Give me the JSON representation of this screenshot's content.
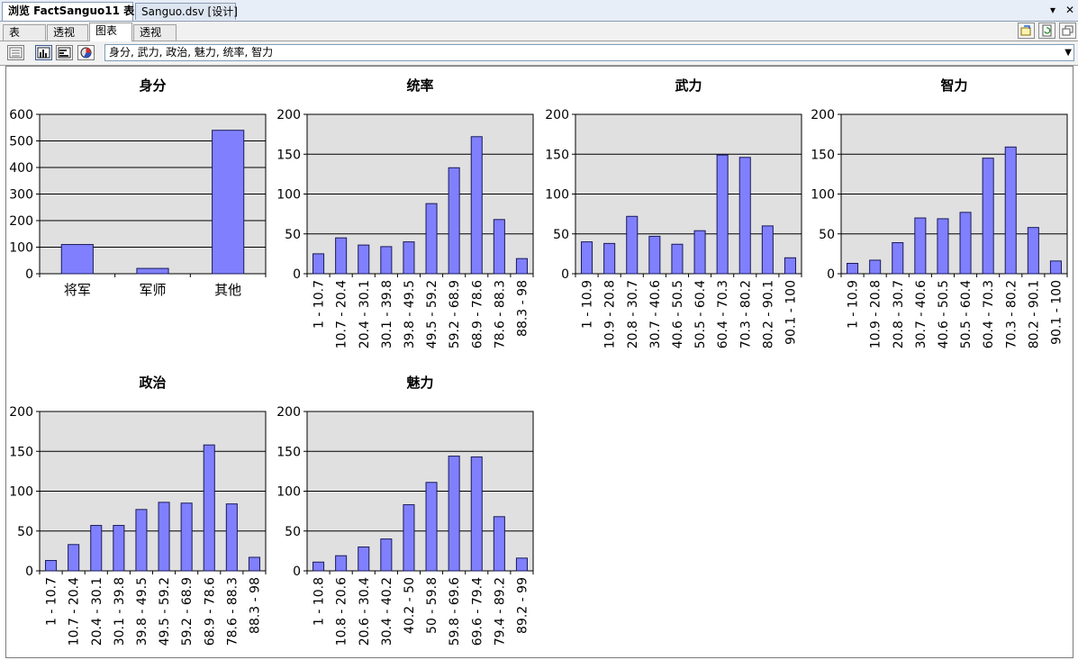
{
  "document_tabs": [
    {
      "label": "浏览 FactSanguo11 表",
      "active": true
    },
    {
      "label": "Sanguo.dsv [设计]",
      "active": false
    }
  ],
  "window_controls": {
    "dropdown": "▾",
    "close": "✕"
  },
  "view_tabs": [
    {
      "label": "表",
      "active": false
    },
    {
      "label": "透视表",
      "active": false
    },
    {
      "label": "图表",
      "active": true
    },
    {
      "label": "透视图",
      "active": false
    }
  ],
  "measures_selection": "身分, 武力, 政治, 魅力, 统率, 智力",
  "colors": {
    "bar_fill": "#8080ff",
    "plot_bg": "#e0e0e0",
    "bar_stroke": "#1a1a5a"
  },
  "chart_data": [
    {
      "type": "bar",
      "title": "身分",
      "categories": [
        "将军",
        "军师",
        "其他"
      ],
      "values": [
        110,
        20,
        540
      ],
      "ylim": [
        0,
        600
      ],
      "yticks": [
        0,
        100,
        200,
        300,
        400,
        500,
        600
      ],
      "grid": true,
      "xlabel_rotated": false
    },
    {
      "type": "bar",
      "title": "统率",
      "categories": [
        "1 - 10.7",
        "10.7 - 20.4",
        "20.4 - 30.1",
        "30.1 - 39.8",
        "39.8 - 49.5",
        "49.5 - 59.2",
        "59.2 - 68.9",
        "68.9 - 78.6",
        "78.6 - 88.3",
        "88.3 - 98"
      ],
      "values": [
        25,
        45,
        36,
        34,
        40,
        88,
        133,
        172,
        68,
        19
      ],
      "ylim": [
        0,
        200
      ],
      "yticks": [
        0,
        50,
        100,
        150,
        200
      ],
      "grid": true,
      "xlabel_rotated": true
    },
    {
      "type": "bar",
      "title": "武力",
      "categories": [
        "1 - 10.9",
        "10.9 - 20.8",
        "20.8 - 30.7",
        "30.7 - 40.6",
        "40.6 - 50.5",
        "50.5 - 60.4",
        "60.4 - 70.3",
        "70.3 - 80.2",
        "80.2 - 90.1",
        "90.1 - 100"
      ],
      "values": [
        40,
        38,
        72,
        47,
        37,
        54,
        149,
        146,
        60,
        20
      ],
      "ylim": [
        0,
        200
      ],
      "yticks": [
        0,
        50,
        100,
        150,
        200
      ],
      "grid": true,
      "xlabel_rotated": true
    },
    {
      "type": "bar",
      "title": "智力",
      "categories": [
        "1 - 10.9",
        "10.9 - 20.8",
        "20.8 - 30.7",
        "30.7 - 40.6",
        "40.6 - 50.5",
        "50.5 - 60.4",
        "60.4 - 70.3",
        "70.3 - 80.2",
        "80.2 - 90.1",
        "90.1 - 100"
      ],
      "values": [
        13,
        17,
        39,
        70,
        69,
        77,
        145,
        159,
        58,
        16
      ],
      "ylim": [
        0,
        200
      ],
      "yticks": [
        0,
        50,
        100,
        150,
        200
      ],
      "grid": true,
      "xlabel_rotated": true
    },
    {
      "type": "bar",
      "title": "政治",
      "categories": [
        "1 - 10.7",
        "10.7 - 20.4",
        "20.4 - 30.1",
        "30.1 - 39.8",
        "39.8 - 49.5",
        "49.5 - 59.2",
        "59.2 - 68.9",
        "68.9 - 78.6",
        "78.6 - 88.3",
        "88.3 - 98"
      ],
      "values": [
        13,
        33,
        57,
        57,
        77,
        86,
        85,
        158,
        84,
        17
      ],
      "ylim": [
        0,
        200
      ],
      "yticks": [
        0,
        50,
        100,
        150,
        200
      ],
      "grid": true,
      "xlabel_rotated": true
    },
    {
      "type": "bar",
      "title": "魅力",
      "categories": [
        "1 - 10.8",
        "10.8 - 20.6",
        "20.6 - 30.4",
        "30.4 - 40.2",
        "40.2 - 50",
        "50 - 59.8",
        "59.8 - 69.6",
        "69.6 - 79.4",
        "79.4 - 89.2",
        "89.2 - 99"
      ],
      "values": [
        11,
        19,
        30,
        40,
        83,
        111,
        144,
        143,
        68,
        16
      ],
      "ylim": [
        0,
        200
      ],
      "yticks": [
        0,
        50,
        100,
        150,
        200
      ],
      "grid": true,
      "xlabel_rotated": true
    }
  ]
}
